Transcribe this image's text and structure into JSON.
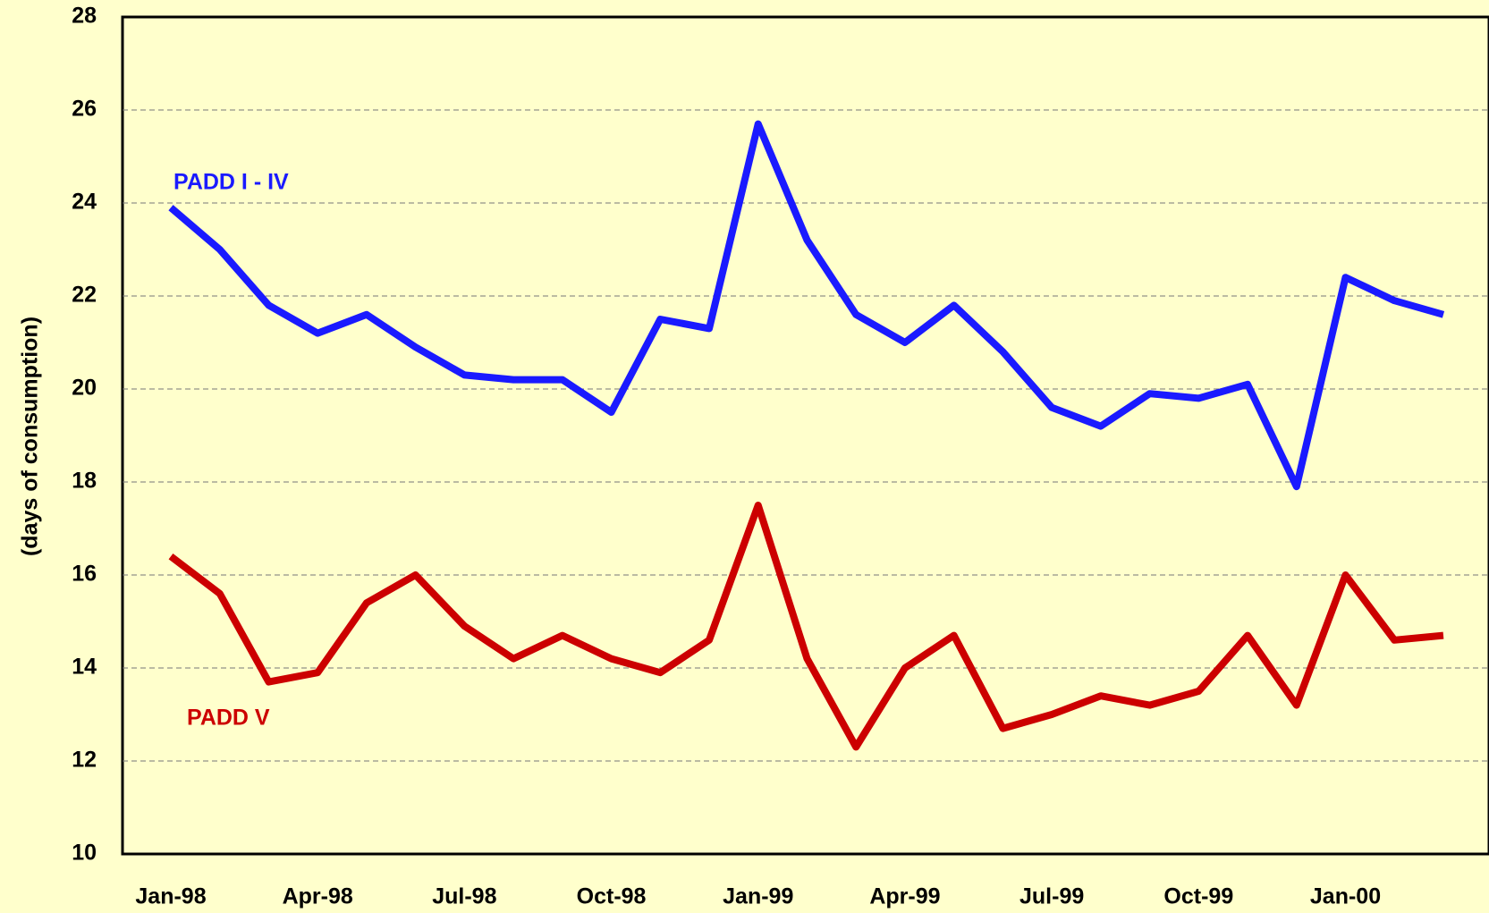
{
  "chart_data": {
    "type": "line",
    "y_label": "(days of consumption)",
    "categories": [
      "Jan-98",
      null,
      null,
      "Apr-98",
      null,
      null,
      "Jul-98",
      null,
      null,
      "Oct-98",
      null,
      null,
      "Jan-99",
      null,
      null,
      "Apr-99",
      null,
      null,
      "Jul-99",
      null,
      null,
      "Oct-99",
      null,
      null,
      "Jan-00",
      null,
      null
    ],
    "series": [
      {
        "name": "PADD I - IV",
        "color": "#1a1aff",
        "values": [
          23.9,
          23.0,
          21.8,
          21.2,
          21.6,
          20.9,
          20.3,
          20.2,
          20.2,
          19.5,
          21.5,
          21.3,
          25.7,
          23.2,
          21.6,
          21.0,
          21.8,
          20.8,
          19.6,
          19.2,
          19.9,
          19.8,
          20.1,
          17.9,
          22.4,
          21.9,
          21.6
        ]
      },
      {
        "name": "PADD V",
        "color": "#cc0000",
        "values": [
          16.4,
          15.6,
          13.7,
          13.9,
          15.4,
          16.0,
          14.9,
          14.2,
          14.7,
          14.2,
          13.9,
          14.6,
          17.5,
          14.2,
          12.3,
          14.0,
          14.7,
          12.7,
          13.0,
          13.4,
          13.2,
          13.5,
          14.7,
          13.2,
          16.0,
          14.6,
          14.7
        ]
      }
    ],
    "ylim": [
      10,
      28
    ],
    "yticks": [
      10,
      12,
      14,
      16,
      18,
      20,
      22,
      24,
      26,
      28
    ],
    "grid": true
  }
}
